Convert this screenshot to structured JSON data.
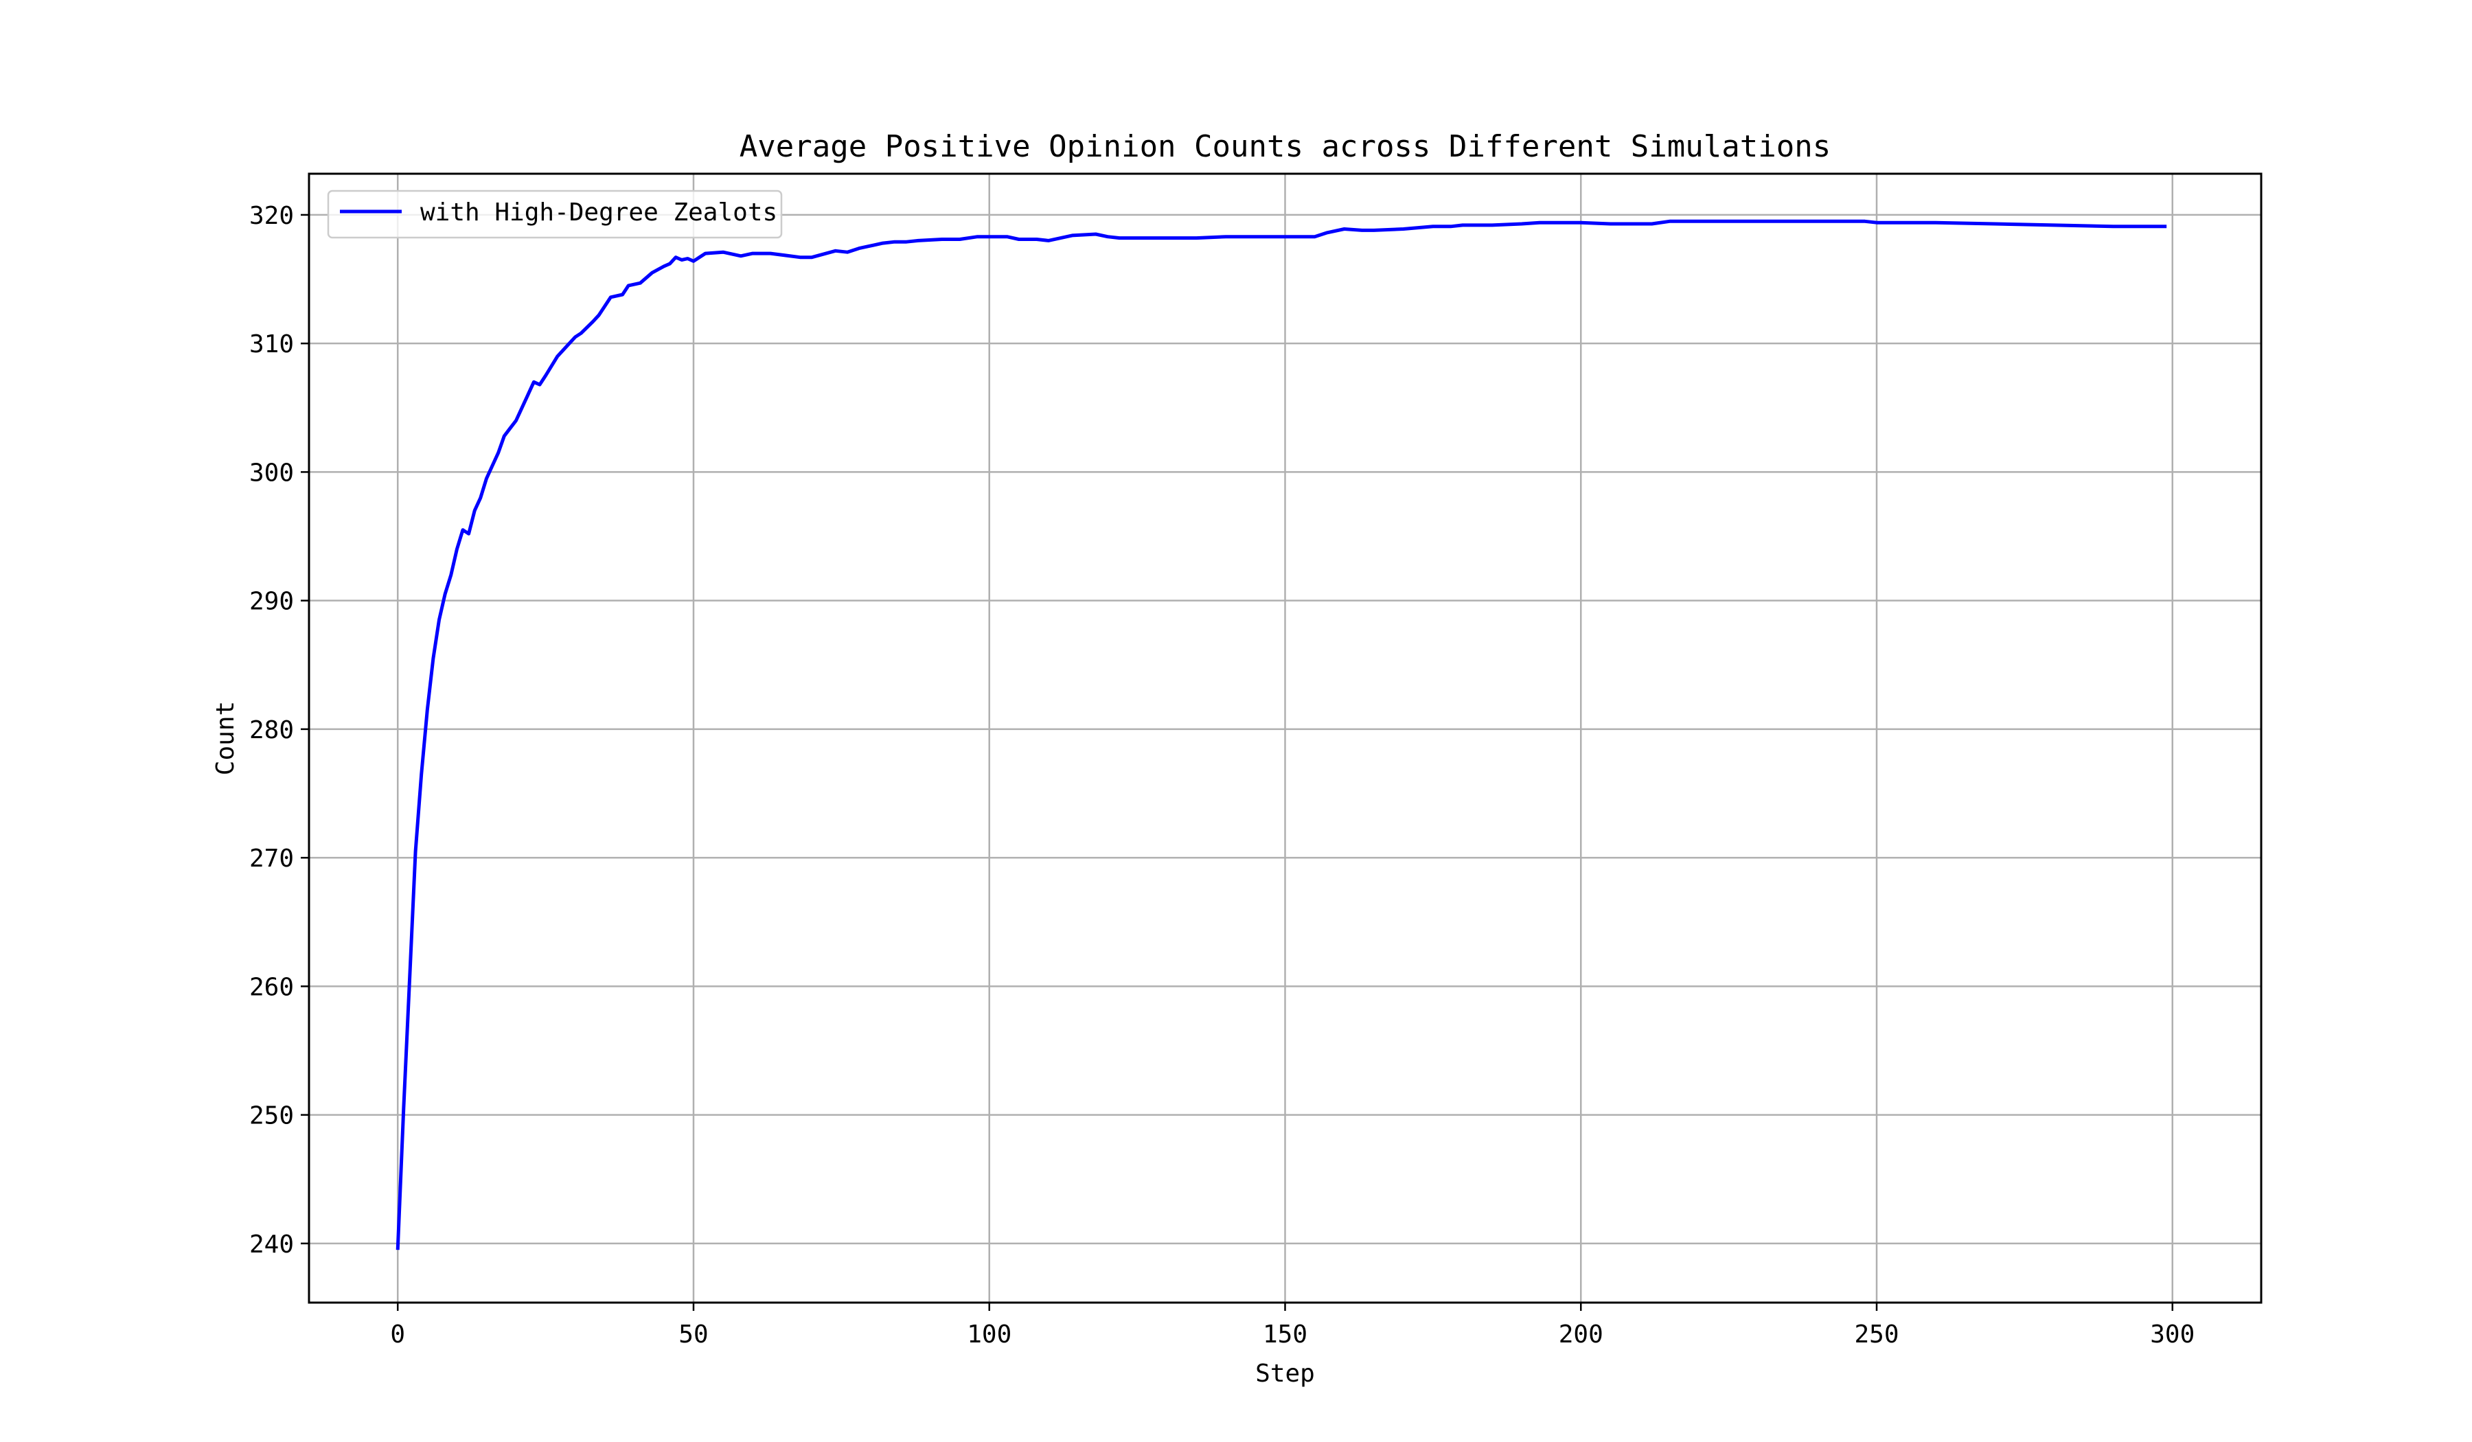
{
  "chart_data": {
    "type": "line",
    "title": "Average Positive Opinion Counts across Different Simulations",
    "xlabel": "Step",
    "ylabel": "Count",
    "xlim": [
      -15,
      315
    ],
    "ylim": [
      235.4,
      323.2
    ],
    "xticks": [
      0,
      50,
      100,
      150,
      200,
      250,
      300
    ],
    "yticks": [
      240,
      250,
      260,
      270,
      280,
      290,
      300,
      310,
      320
    ],
    "x_tick_labels": [
      "0",
      "50",
      "100",
      "150",
      "200",
      "250",
      "300"
    ],
    "y_tick_labels": [
      "240",
      "250",
      "260",
      "270",
      "280",
      "290",
      "300",
      "310",
      "320"
    ],
    "grid": true,
    "legend_position": "upper-left",
    "colors": {
      "series": "#0000ff",
      "grid": "#b0b0b0",
      "axes": "#000000",
      "legend_border": "#cccccc"
    },
    "series": [
      {
        "name": "with High-Degree Zealots",
        "x": [
          0,
          1,
          2,
          3,
          4,
          5,
          6,
          7,
          8,
          9,
          10,
          11,
          12,
          13,
          14,
          15,
          16,
          17,
          18,
          19,
          20,
          22,
          23,
          24,
          25,
          27,
          28,
          30,
          31,
          33,
          34,
          36,
          38,
          39,
          41,
          43,
          45,
          46,
          47,
          48,
          49,
          50,
          52,
          55,
          58,
          60,
          63,
          68,
          70,
          74,
          76,
          78,
          82,
          84,
          86,
          88,
          92,
          95,
          98,
          100,
          103,
          105,
          108,
          110,
          114,
          118,
          120,
          122,
          126,
          130,
          135,
          140,
          145,
          150,
          155,
          157,
          160,
          163,
          165,
          170,
          175,
          178,
          180,
          185,
          190,
          193,
          198,
          200,
          205,
          212,
          215,
          220,
          230,
          240,
          248,
          250,
          260,
          270,
          280,
          290,
          299
        ],
        "y": [
          239.5,
          250.5,
          260.5,
          270.5,
          276.5,
          281.5,
          285.5,
          288.5,
          290.5,
          292,
          294,
          295.5,
          295.2,
          297,
          298,
          299.5,
          300.5,
          301.5,
          302.8,
          303.4,
          304,
          306,
          307,
          306.8,
          307.5,
          309,
          309.5,
          310.5,
          310.8,
          311.7,
          312.2,
          313.6,
          313.8,
          314.5,
          314.7,
          315.5,
          316,
          316.2,
          316.7,
          316.5,
          316.6,
          316.4,
          317,
          317.1,
          316.8,
          317,
          317,
          316.7,
          316.7,
          317.2,
          317.1,
          317.4,
          317.8,
          317.9,
          317.9,
          318,
          318.1,
          318.1,
          318.3,
          318.3,
          318.3,
          318.1,
          318.1,
          318,
          318.4,
          318.5,
          318.3,
          318.2,
          318.2,
          318.2,
          318.2,
          318.3,
          318.3,
          318.3,
          318.3,
          318.6,
          318.9,
          318.8,
          318.8,
          318.9,
          319.1,
          319.1,
          319.2,
          319.2,
          319.3,
          319.4,
          319.4,
          319.4,
          319.3,
          319.3,
          319.5,
          319.5,
          319.5,
          319.5,
          319.5,
          319.4,
          319.4,
          319.3,
          319.2,
          319.1,
          319.1
        ]
      }
    ]
  }
}
